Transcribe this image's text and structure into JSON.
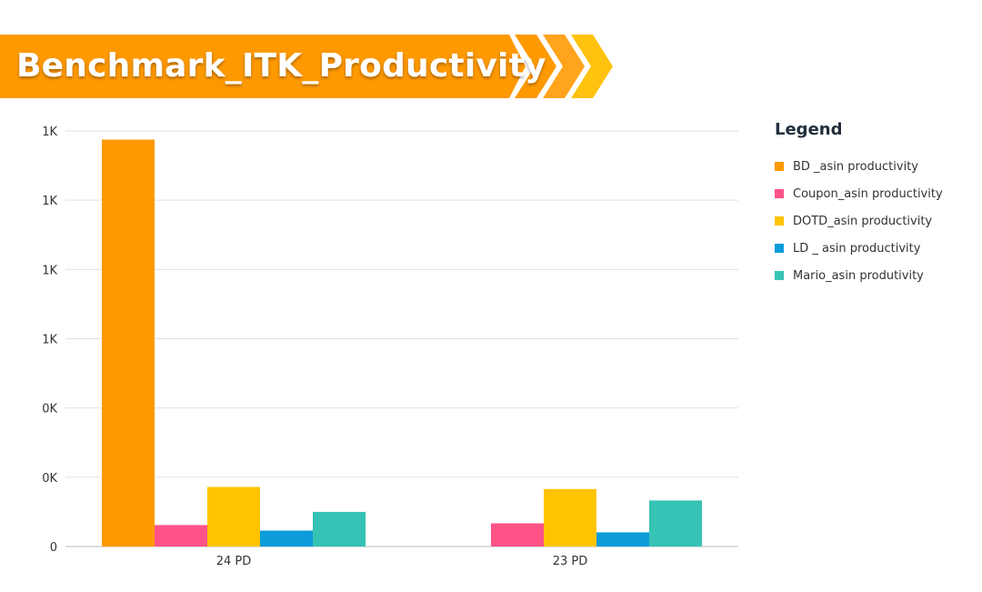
{
  "banner": {
    "title": "Benchmark_ITK_Productivity"
  },
  "colors": {
    "banner": "#FF9900",
    "chevron_1": "#FF9900",
    "chevron_2": "#FFA41C",
    "chevron_3": "#FFC20E"
  },
  "chart_data": {
    "type": "bar",
    "title": "Benchmark_ITK_Productivity",
    "xlabel": "",
    "ylabel": "",
    "categories": [
      "24 PD",
      "23 PD"
    ],
    "ylim": [
      0,
      1200
    ],
    "y_ticks": [
      0,
      200,
      400,
      600,
      800,
      1000,
      1200
    ],
    "y_tick_labels": [
      "0",
      "0K",
      "0K",
      "1K",
      "1K",
      "1K",
      "1K"
    ],
    "grid": true,
    "legend_position": "right",
    "legend_title": "Legend",
    "series": [
      {
        "name": "BD _asin productivity",
        "color": "#FF9900",
        "values": [
          1175,
          null
        ]
      },
      {
        "name": "Coupon_asin productivity",
        "color": "#FF5287",
        "values": [
          62,
          67
        ]
      },
      {
        "name": "DOTD_asin productivity",
        "color": "#FFC300",
        "values": [
          172,
          166
        ]
      },
      {
        "name": "LD _ asin productivity",
        "color": "#0B9CD9",
        "values": [
          46,
          41
        ]
      },
      {
        "name": "Mario_asin produtivity",
        "color": "#36C2B4",
        "values": [
          100,
          133
        ]
      }
    ]
  }
}
